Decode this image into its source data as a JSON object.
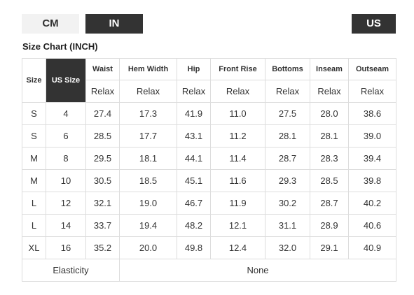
{
  "unit_tabs": [
    "CM",
    "IN"
  ],
  "region_button": "US",
  "title": "Size Chart (INCH)",
  "table": {
    "headers": [
      "Size",
      "US Size",
      "Waist",
      "Hem Width",
      "Hip",
      "Front Rise",
      "Bottoms",
      "Inseam",
      "Outseam"
    ],
    "subheaders": [
      "Relax",
      "Relax",
      "Relax",
      "Relax",
      "Relax",
      "Relax",
      "Relax"
    ],
    "rows": [
      [
        "S",
        "4",
        "27.4",
        "17.3",
        "41.9",
        "11.0",
        "27.5",
        "28.0",
        "38.6"
      ],
      [
        "S",
        "6",
        "28.5",
        "17.7",
        "43.1",
        "11.2",
        "28.1",
        "28.1",
        "39.0"
      ],
      [
        "M",
        "8",
        "29.5",
        "18.1",
        "44.1",
        "11.4",
        "28.7",
        "28.3",
        "39.4"
      ],
      [
        "M",
        "10",
        "30.5",
        "18.5",
        "45.1",
        "11.6",
        "29.3",
        "28.5",
        "39.8"
      ],
      [
        "L",
        "12",
        "32.1",
        "19.0",
        "46.7",
        "11.9",
        "30.2",
        "28.7",
        "40.2"
      ],
      [
        "L",
        "14",
        "33.7",
        "19.4",
        "48.2",
        "12.1",
        "31.1",
        "28.9",
        "40.6"
      ],
      [
        "XL",
        "16",
        "35.2",
        "20.0",
        "49.8",
        "12.4",
        "32.0",
        "29.1",
        "40.9"
      ]
    ],
    "footer": [
      "Elasticity",
      "None"
    ]
  }
}
